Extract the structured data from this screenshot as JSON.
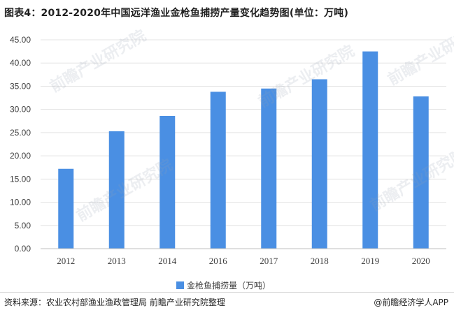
{
  "title": "图表4：2012-2020年中国远洋渔业金枪鱼捕捞产量变化趋势图(单位：万吨)",
  "watermark": "前瞻产业研究院",
  "colors": {
    "bar": "#4a8fe3",
    "grid": "#e3e3e3",
    "axis": "#bfbfbf"
  },
  "chart_data": {
    "type": "bar",
    "categories": [
      "2012",
      "2013",
      "2014",
      "2016",
      "2017",
      "2018",
      "2019",
      "2020"
    ],
    "series": [
      {
        "name": "金枪鱼捕捞量（万吨）",
        "values": [
          17.2,
          25.3,
          28.6,
          33.8,
          34.5,
          36.5,
          42.5,
          32.8
        ]
      }
    ],
    "yticks": [
      "0.00",
      "5.00",
      "10.00",
      "15.00",
      "20.00",
      "25.00",
      "30.00",
      "35.00",
      "40.00",
      "45.00"
    ],
    "ylim": [
      0,
      45
    ],
    "grid": true,
    "legend_position": "bottom"
  },
  "footer": {
    "source": "资料来源：农业农村部渔业渔政管理局 前瞻产业研究院整理",
    "brand": "@前瞻经济学人APP"
  }
}
